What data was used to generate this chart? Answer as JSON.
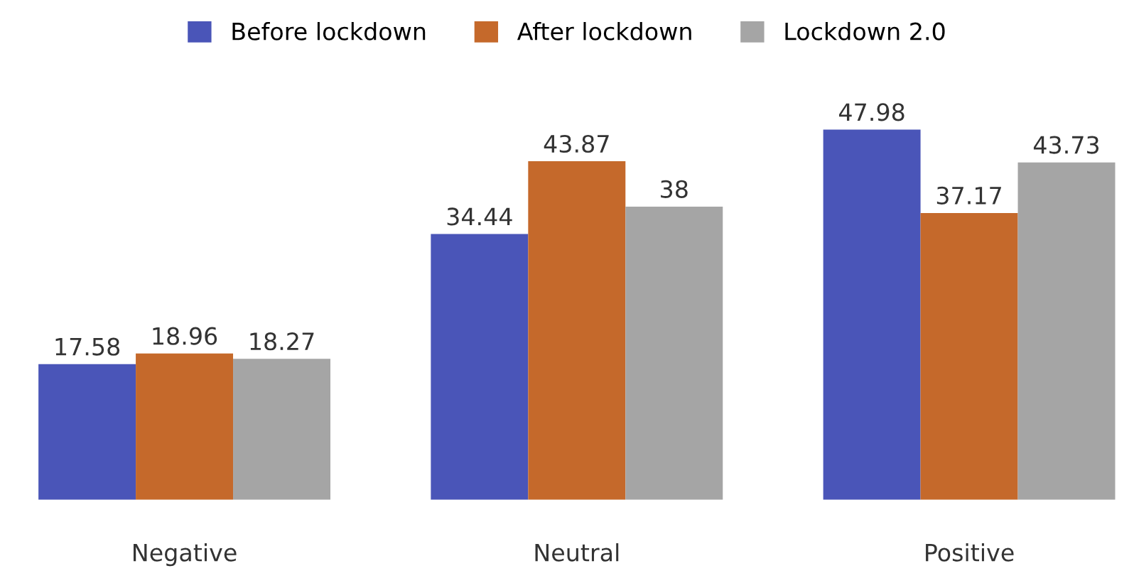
{
  "chart_data": {
    "type": "bar",
    "categories": [
      "Negative",
      "Neutral",
      "Positive"
    ],
    "series": [
      {
        "name": "Before lockdown",
        "color": "#4a55b8",
        "values": [
          17.58,
          34.44,
          47.98
        ]
      },
      {
        "name": "After lockdown",
        "color": "#c5692b",
        "values": [
          18.96,
          43.87,
          37.17
        ]
      },
      {
        "name": "Lockdown 2.0",
        "color": "#a5a5a5",
        "values": [
          18.27,
          38,
          43.73
        ]
      }
    ],
    "data_labels": true,
    "legend": "top",
    "grid": false
  }
}
